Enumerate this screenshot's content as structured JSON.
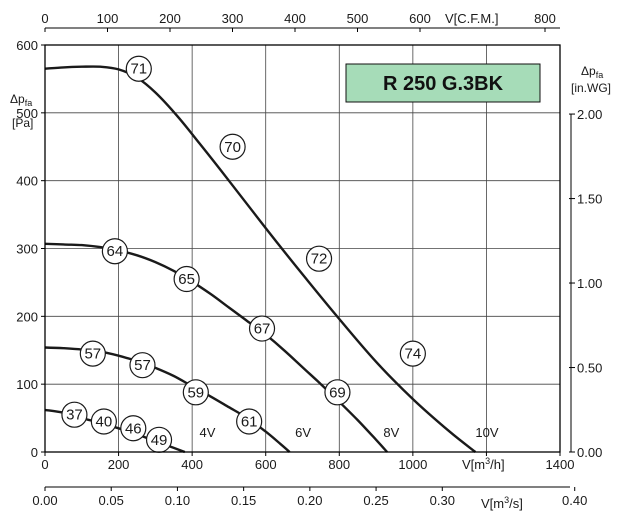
{
  "chart_data": {
    "type": "line",
    "title": "R 250 G.3BK",
    "title_bg_color": "#a6dcb8",
    "x_label": "V[m³/h]",
    "x_unit_main": "V[m",
    "x_unit_sup": "3",
    "x_unit_end": "/h]",
    "xlim": [
      0,
      1400
    ],
    "x_ticks": [
      0,
      200,
      400,
      600,
      800,
      1000,
      1200,
      1400
    ],
    "y_label": "Δpfa [Pa]",
    "y_label_delta": "Δp",
    "y_label_sub": "fa",
    "y_label_unit": "[Pa]",
    "ylim": [
      0,
      600
    ],
    "y_ticks": [
      0,
      100,
      200,
      300,
      400,
      500,
      600
    ],
    "top_axis": {
      "label": "V[C.F.M.]",
      "ticks": [
        "0",
        "100",
        "200",
        "300",
        "400",
        "500",
        "600",
        "800"
      ],
      "tick_m3h": [
        0,
        169.9,
        339.8,
        509.7,
        679.6,
        849.5,
        1019.4,
        1359.2
      ]
    },
    "bottom_axis2": {
      "label_main": "V[m",
      "label_sup": "3",
      "label_end": "/s]",
      "ticks": [
        "0.00",
        "0.05",
        "0.10",
        "0.15",
        "0.20",
        "0.25",
        "0.30",
        "0.40"
      ],
      "tick_m3h": [
        0,
        180,
        360,
        540,
        720,
        900,
        1080,
        1440
      ]
    },
    "right_axis": {
      "label_delta": "Δp",
      "label_sub": "fa",
      "label_unit": "[in.WG]",
      "ticks": [
        "0.00",
        "0.50",
        "1.00",
        "1.50",
        "2.00"
      ],
      "tick_pa": [
        0,
        124.5,
        249.1,
        373.6,
        498.2
      ]
    },
    "grid": true,
    "series": [
      {
        "name": "10V",
        "label_x": 1170,
        "label_y": 22,
        "x": [
          0,
          50,
          100,
          150,
          200,
          250,
          300,
          360,
          420,
          500,
          600,
          700,
          800,
          900,
          1000,
          1100,
          1170
        ],
        "y": [
          565,
          567,
          568,
          568,
          564,
          552,
          530,
          495,
          455,
          400,
          330,
          262,
          196,
          133,
          78,
          30,
          0
        ]
      },
      {
        "name": "8V",
        "label_x": 920,
        "label_y": 22,
        "x": [
          0,
          50,
          100,
          150,
          200,
          250,
          300,
          350,
          400,
          450,
          500,
          550,
          600,
          650,
          700,
          750,
          800,
          850,
          900,
          930
        ],
        "y": [
          307,
          306,
          305,
          302,
          297,
          290,
          280,
          267,
          251,
          233,
          213,
          193,
          173,
          150,
          125,
          100,
          74,
          47,
          18,
          0
        ]
      },
      {
        "name": "6V",
        "label_x": 680,
        "label_y": 22,
        "x": [
          0,
          50,
          100,
          150,
          200,
          250,
          300,
          350,
          400,
          450,
          500,
          550,
          600,
          640,
          665
        ],
        "y": [
          154,
          153,
          151,
          148,
          142,
          134,
          124,
          112,
          97,
          82,
          66,
          50,
          30,
          12,
          0
        ]
      },
      {
        "name": "4V",
        "label_x": 420,
        "label_y": 22,
        "x": [
          0,
          50,
          100,
          150,
          200,
          250,
          300,
          350,
          380
        ],
        "y": [
          62,
          58,
          50,
          43,
          35,
          26,
          16,
          6,
          0
        ]
      }
    ],
    "efficiency_markers": [
      {
        "label": "71",
        "x": 255,
        "y": 565
      },
      {
        "label": "70",
        "x": 510,
        "y": 450
      },
      {
        "label": "72",
        "x": 745,
        "y": 285
      },
      {
        "label": "74",
        "x": 1000,
        "y": 145
      },
      {
        "label": "64",
        "x": 190,
        "y": 296
      },
      {
        "label": "65",
        "x": 385,
        "y": 255
      },
      {
        "label": "67",
        "x": 590,
        "y": 182
      },
      {
        "label": "69",
        "x": 795,
        "y": 88
      },
      {
        "label": "57",
        "x": 130,
        "y": 145
      },
      {
        "label": "57",
        "x": 265,
        "y": 128
      },
      {
        "label": "59",
        "x": 410,
        "y": 88
      },
      {
        "label": "61",
        "x": 555,
        "y": 45
      },
      {
        "label": "37",
        "x": 80,
        "y": 55
      },
      {
        "label": "40",
        "x": 160,
        "y": 45
      },
      {
        "label": "46",
        "x": 240,
        "y": 35
      },
      {
        "label": "49",
        "x": 310,
        "y": 18
      }
    ]
  }
}
